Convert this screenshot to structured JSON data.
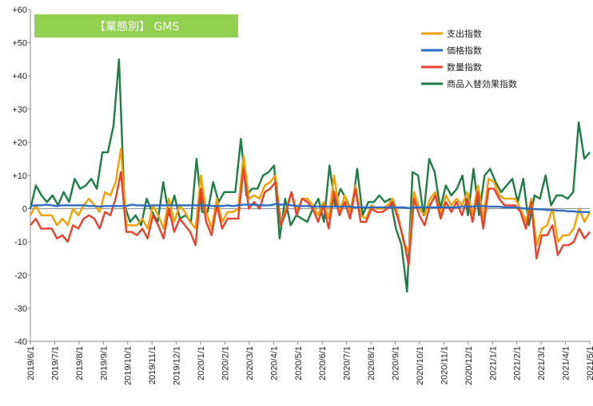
{
  "chart_data": {
    "type": "line",
    "title": "【業態別】 GMS",
    "title_bg": "#92D050",
    "ylim": [
      -40,
      60
    ],
    "y_ticks": [
      "+60",
      "+50",
      "+40",
      "+30",
      "+20",
      "+10",
      "0",
      "-10",
      "-20",
      "-30",
      "-40"
    ],
    "y_tick_values": [
      60,
      50,
      40,
      30,
      20,
      10,
      0,
      -10,
      -20,
      -30,
      -40
    ],
    "x_labels": [
      "2019/6/1",
      "2019/7/1",
      "2019/8/1",
      "2019/9/1",
      "2019/10/1",
      "2019/11/1",
      "2019/12/1",
      "2020/1/1",
      "2020/2/1",
      "2020/3/1",
      "2020/4/1",
      "2020/5/1",
      "2020/6/1",
      "2020/7/1",
      "2020/8/1",
      "2020/9/1",
      "2020/10/1",
      "2020/11/1",
      "2020/12/1",
      "2021/1/1",
      "2021/2/1",
      "2021/3/1",
      "2021/4/1",
      "2021/5/1"
    ],
    "x_period": "weekly",
    "grid": false,
    "legend_position": "top-right",
    "series": [
      {
        "name": "支出指数",
        "color": "#F5A000",
        "values": [
          -2,
          1,
          -2,
          -2,
          -2,
          -5,
          -3,
          -5,
          0,
          -2,
          1,
          3,
          1,
          -1,
          5,
          4,
          8,
          18,
          -5,
          -5,
          -5,
          -3,
          -6,
          1,
          -2,
          -6,
          3,
          -4,
          1,
          -1,
          -4,
          -6,
          10,
          -1,
          -6,
          3,
          -4,
          -1,
          -1,
          0,
          16,
          3,
          4,
          3,
          7,
          8,
          10,
          -5,
          0,
          5,
          -1,
          3,
          3,
          1,
          -2,
          2,
          -3,
          10,
          -1,
          4,
          -1,
          7,
          -2,
          -3,
          1,
          0,
          0,
          1,
          3,
          -2,
          -10,
          -13,
          5,
          0,
          -2,
          3,
          5,
          -2,
          4,
          1,
          3,
          1,
          5,
          -2,
          7,
          -3,
          9,
          8,
          4,
          3,
          3,
          3,
          0,
          -4,
          3,
          -11,
          -6,
          -5,
          0,
          -10,
          -8,
          -8,
          -6,
          0,
          -4,
          -1
        ]
      },
      {
        "name": "価格指数",
        "color": "#2D6BC4",
        "values": [
          0.8,
          1.0,
          1.0,
          1.2,
          1.0,
          0.8,
          1.0,
          1.0,
          1.0,
          1.0,
          1.0,
          0.8,
          0.8,
          0.6,
          0.8,
          0.8,
          0.8,
          0.8,
          0.8,
          1.2,
          1.0,
          1.0,
          0.8,
          1.0,
          1.0,
          1.0,
          1.0,
          1.0,
          1.0,
          1.0,
          1.0,
          1.0,
          1.0,
          1.0,
          0.8,
          0.8,
          0.8,
          1.0,
          0.8,
          1.0,
          1.2,
          1.2,
          1.2,
          1.0,
          1.0,
          1.0,
          1.4,
          1.2,
          1.2,
          1.0,
          0.8,
          0.8,
          0.8,
          0.6,
          0.6,
          0.6,
          0.6,
          0.6,
          0.6,
          0.6,
          0.6,
          0.4,
          0.4,
          0.4,
          0.4,
          0.4,
          0.4,
          0.4,
          0.4,
          0.4,
          0.4,
          0.2,
          0.4,
          0.4,
          0.4,
          0.4,
          0.4,
          0.4,
          0.4,
          0.4,
          0.4,
          0.6,
          0.6,
          0.6,
          0.8,
          0.8,
          0.6,
          0.6,
          0.6,
          0.4,
          0.4,
          0.4,
          0.2,
          0.0,
          0.0,
          -0.2,
          -0.2,
          -0.4,
          -0.4,
          -0.6,
          -0.6,
          -0.8,
          -0.8,
          -1.0,
          -1.0,
          -1.0
        ]
      },
      {
        "name": "数量指数",
        "color": "#E8412D",
        "values": [
          -5,
          -3,
          -6,
          -6,
          -6,
          -9,
          -8,
          -10,
          -5,
          -6,
          -3,
          -2,
          -3,
          -6,
          -1,
          -2,
          3,
          11,
          -7,
          -7,
          -8,
          -6,
          -9,
          -2,
          -5,
          -9,
          0,
          -7,
          -3,
          -5,
          -7,
          -11,
          6,
          -4,
          -8,
          1,
          -6,
          -3,
          -3,
          -3,
          12,
          0,
          2,
          0,
          5,
          6,
          8,
          -5,
          -1,
          5,
          -2,
          3,
          2,
          0,
          -4,
          1,
          -6,
          5,
          -2,
          2,
          -3,
          6,
          -4,
          -4,
          0,
          -1,
          -1,
          0,
          2,
          -3,
          -9,
          -17,
          3,
          -2,
          -5,
          1,
          4,
          -3,
          2,
          -1,
          2,
          -2,
          3,
          -4,
          5,
          -6,
          6,
          6,
          3,
          1,
          1,
          1,
          -1,
          -6,
          2,
          -15,
          -8,
          -8,
          -5,
          -14,
          -11,
          -11,
          -10,
          -6,
          -9,
          -7
        ]
      },
      {
        "name": "商品入替効果指数",
        "color": "#1E7D46",
        "values": [
          0,
          7,
          4,
          2,
          4,
          1,
          5,
          2,
          9,
          6,
          7,
          9,
          6,
          17,
          17,
          25,
          45,
          1,
          -4,
          -2,
          -5,
          3,
          -1,
          -4,
          8,
          -2,
          4,
          -3,
          -2,
          -4,
          15,
          -1,
          -1,
          8,
          2,
          5,
          5,
          5,
          21,
          4,
          6,
          6,
          10,
          11,
          13,
          -9,
          3,
          -5,
          -2,
          -3,
          -4,
          0,
          3,
          -4,
          13,
          1,
          6,
          3,
          -1,
          12,
          -2,
          2,
          2,
          4,
          2,
          3,
          -6,
          -11,
          -25,
          11,
          10,
          -2,
          15,
          11,
          0,
          7,
          4,
          6,
          10,
          -2,
          12,
          -2,
          10,
          12,
          8,
          5,
          7,
          9,
          2,
          9,
          -5,
          4,
          3,
          10,
          1,
          4,
          4,
          3,
          5,
          26,
          15,
          17
        ]
      }
    ]
  }
}
